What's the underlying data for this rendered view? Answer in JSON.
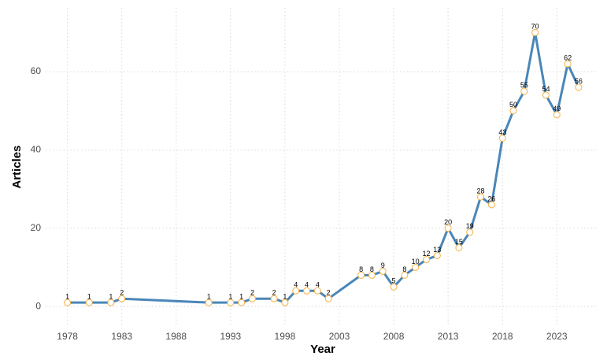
{
  "chart_data": {
    "type": "line",
    "x_label": "Year",
    "y_label": "Articles",
    "x": [
      1978,
      1980,
      1982,
      1983,
      1991,
      1993,
      1994,
      1995,
      1997,
      1998,
      1999,
      2000,
      2001,
      2002,
      2005,
      2006,
      2007,
      2008,
      2009,
      2010,
      2011,
      2012,
      2013,
      2014,
      2015,
      2016,
      2017,
      2018,
      2019,
      2020,
      2021,
      2022,
      2023,
      2024,
      2025
    ],
    "values": [
      1,
      1,
      1,
      2,
      1,
      1,
      1,
      2,
      2,
      1,
      4,
      4,
      4,
      2,
      8,
      8,
      9,
      5,
      8,
      10,
      12,
      13,
      20,
      15,
      19,
      28,
      26,
      43,
      50,
      55,
      70,
      54,
      49,
      62,
      56
    ],
    "color": "#4a86b8",
    "marker_edge": "#f5b041",
    "marker_fill": "#ffffff",
    "xlim": [
      1976,
      2026.6
    ],
    "ylim": [
      -4.6,
      76.3
    ],
    "xticks": [
      1978,
      1983,
      1988,
      1993,
      1998,
      2003,
      2008,
      2013,
      2018,
      2023
    ],
    "yticks": [
      0,
      20,
      40,
      60
    ],
    "grid": true
  }
}
